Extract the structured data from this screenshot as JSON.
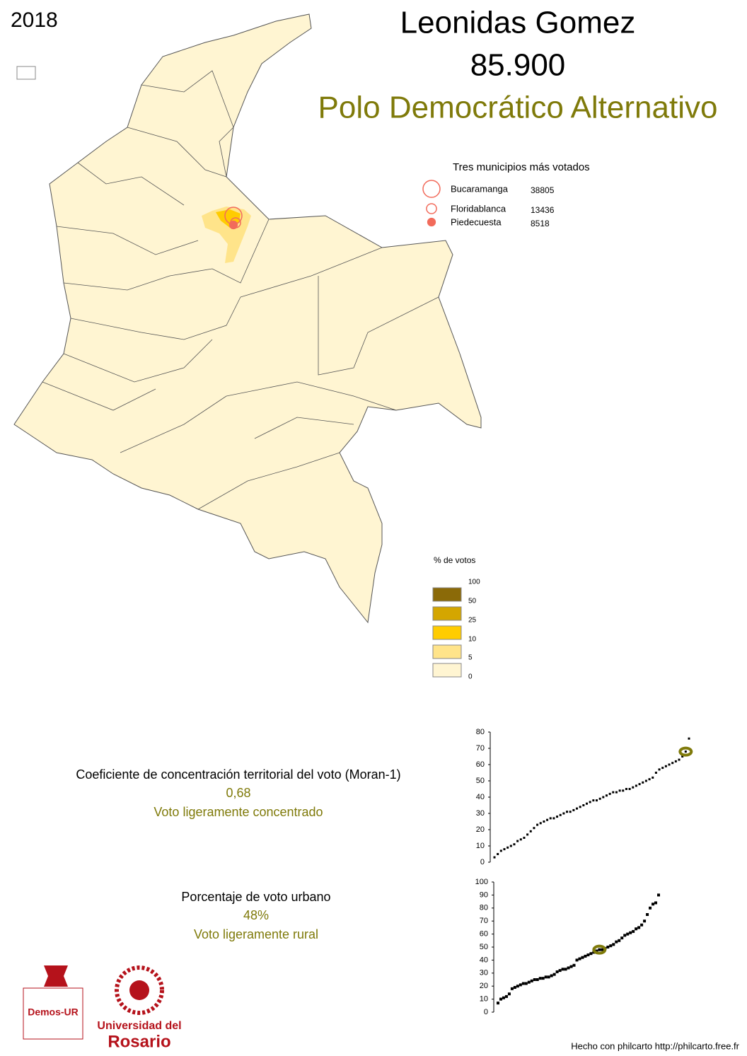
{
  "year": "2018",
  "candidate": "Leonidas Gomez",
  "votes": {
    "value": 85900,
    "label": "85.900"
  },
  "party": "Polo Democrático Alternativo",
  "top_municipalities": {
    "title": "Tres municipios más votados",
    "color": "#f26b5b",
    "items": [
      {
        "name": "Bucaramanga",
        "votes": 38805,
        "filled": false
      },
      {
        "name": "Floridablanca",
        "votes": 13436,
        "filled": false
      },
      {
        "name": "Piedecuesta",
        "votes": 8518,
        "filled": true
      }
    ]
  },
  "legend": {
    "title": "% de votos",
    "breaks": [
      100,
      50,
      25,
      10,
      5,
      0
    ],
    "colors": [
      "#8b6a08",
      "#d4a600",
      "#ffcc00",
      "#ffe48a",
      "#fff5d2"
    ]
  },
  "moran": {
    "title": "Coeficiente de concentración territorial del voto (Moran-1)",
    "value": {
      "value": 0.68,
      "label": "0,68"
    },
    "verdict": "Voto ligeramente concentrado"
  },
  "urban": {
    "title": "Porcentaje de voto urbano",
    "value": {
      "value": 48,
      "label": "48%"
    },
    "verdict": "Voto ligeramente rural"
  },
  "logos": {
    "demos": "Demos-UR",
    "university_line1": "Universidad del",
    "university_line2": "Rosario"
  },
  "footer": "Hecho con philcarto http://philcarto.free.fr",
  "chart_data": [
    {
      "type": "scatter",
      "color": "#000000",
      "highlight": 68,
      "highlight_color": "#7f7a0a",
      "ylim": [
        0,
        80
      ],
      "yticks": [
        0,
        10,
        20,
        30,
        40,
        50,
        60,
        70,
        80
      ],
      "values": [
        3,
        5,
        7,
        8,
        9,
        10,
        11,
        13,
        14,
        15,
        17,
        19,
        21,
        23,
        24,
        25,
        26,
        27,
        27,
        28,
        29,
        30,
        31,
        31,
        32,
        33,
        34,
        35,
        36,
        37,
        38,
        38,
        39,
        40,
        41,
        42,
        43,
        43,
        44,
        44,
        45,
        45,
        46,
        47,
        48,
        49,
        50,
        51,
        52,
        55,
        57,
        58,
        59,
        60,
        61,
        62,
        63,
        65,
        68,
        76
      ]
    },
    {
      "type": "scatter",
      "color": "#000000",
      "highlight": 48,
      "highlight_color": "#7f7a0a",
      "ylim": [
        0,
        100
      ],
      "yticks": [
        0,
        10,
        20,
        30,
        40,
        50,
        60,
        70,
        80,
        90,
        100
      ],
      "values": [
        7,
        10,
        11,
        12,
        14,
        18,
        19,
        20,
        21,
        22,
        22,
        23,
        24,
        25,
        25,
        26,
        26,
        27,
        27,
        28,
        29,
        31,
        32,
        33,
        33,
        34,
        35,
        36,
        40,
        41,
        42,
        43,
        44,
        45,
        46,
        47,
        48,
        48,
        49,
        50,
        51,
        52,
        54,
        55,
        57,
        59,
        60,
        61,
        62,
        64,
        65,
        67,
        70,
        75,
        80,
        83,
        84,
        90
      ]
    }
  ]
}
